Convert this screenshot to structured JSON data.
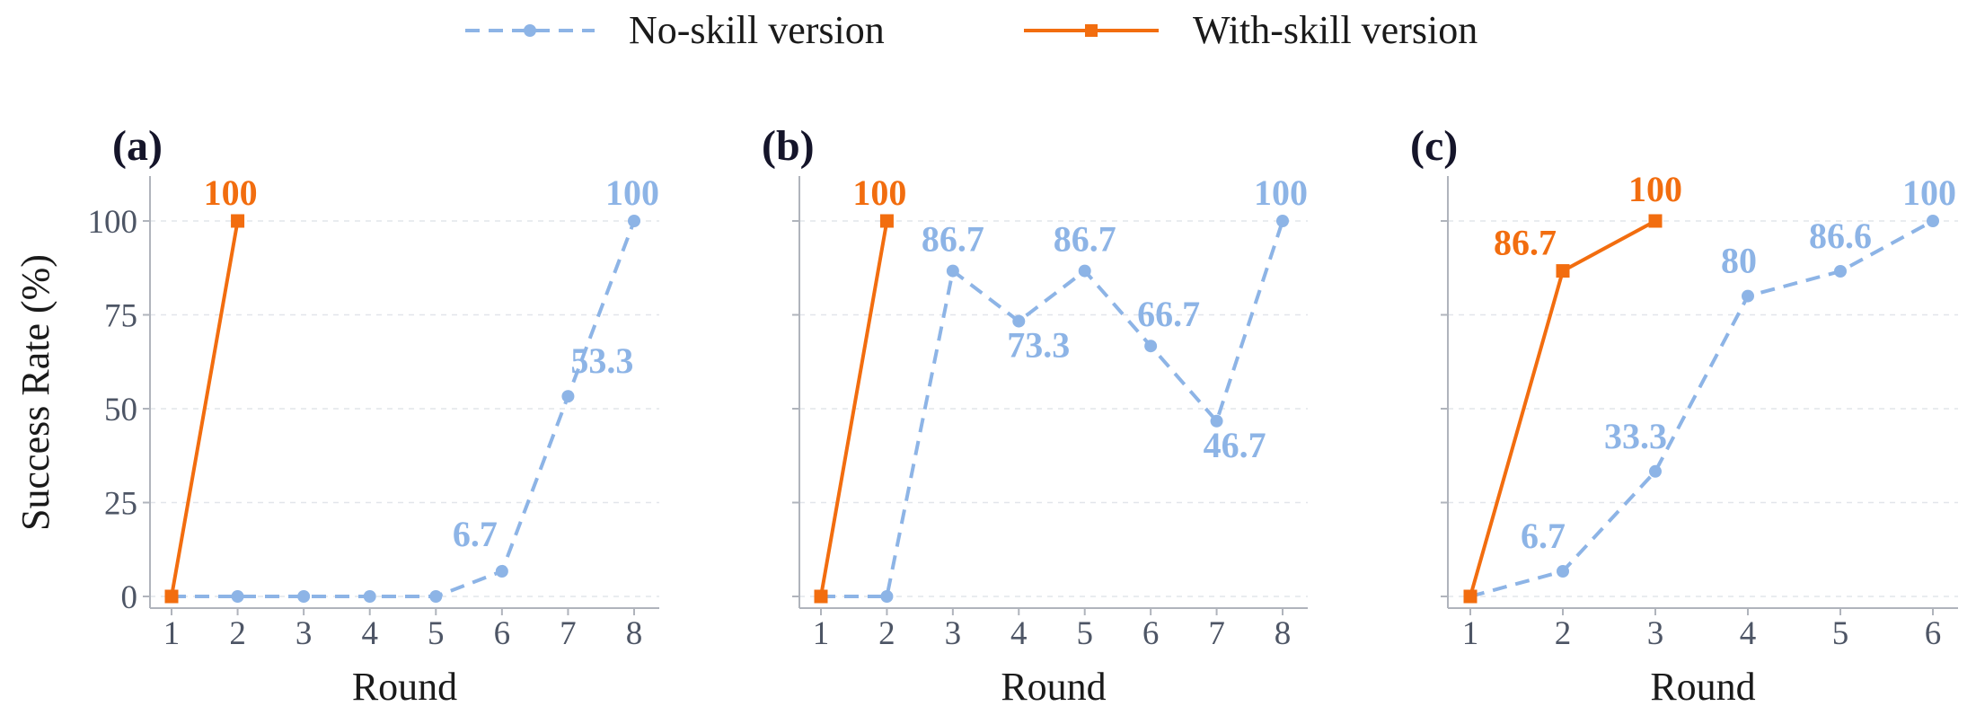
{
  "colors": {
    "no_skill": "#8db4e6",
    "with_skill": "#f26d0f",
    "axis": "#b0b4bc",
    "grid": "#e2e5ea"
  },
  "legend": {
    "entries": [
      {
        "name": "No-skill version",
        "color": "#8db4e6",
        "marker": "circle",
        "line": "dashed"
      },
      {
        "name": "With-skill version",
        "color": "#f26d0f",
        "marker": "square",
        "line": "solid"
      }
    ],
    "position": "top-center"
  },
  "chart_data": [
    {
      "type": "line",
      "panel_label": "(a)",
      "xlabel": "Round",
      "ylabel": "Success Rate (%)",
      "ylim": [
        -3,
        112
      ],
      "yticks": [
        0,
        25,
        50,
        75,
        100
      ],
      "x": [
        1,
        2,
        3,
        4,
        5,
        6,
        7,
        8
      ],
      "grid": "horizontal-dashed",
      "series": [
        {
          "name": "No-skill version",
          "x": [
            1,
            2,
            3,
            4,
            5,
            6,
            7,
            8
          ],
          "values": [
            0,
            0,
            0,
            0,
            0,
            6.7,
            53.3,
            100
          ],
          "labels": [
            {
              "i": 5,
              "text": "6.7"
            },
            {
              "i": 6,
              "text": "53.3"
            },
            {
              "i": 7,
              "text": "100"
            }
          ]
        },
        {
          "name": "With-skill version",
          "x": [
            1,
            2
          ],
          "values": [
            0,
            100
          ],
          "labels": [
            {
              "i": 1,
              "text": "100"
            }
          ]
        }
      ]
    },
    {
      "type": "line",
      "panel_label": "(b)",
      "xlabel": "Round",
      "ylabel": "",
      "ylim": [
        -3,
        112
      ],
      "yticks": [
        0,
        25,
        50,
        75,
        100
      ],
      "x": [
        1,
        2,
        3,
        4,
        5,
        6,
        7,
        8
      ],
      "grid": "horizontal-dashed",
      "series": [
        {
          "name": "No-skill version",
          "x": [
            1,
            2,
            3,
            4,
            5,
            6,
            7,
            8
          ],
          "values": [
            0,
            0,
            86.7,
            73.3,
            86.7,
            66.7,
            46.7,
            100
          ],
          "labels": [
            {
              "i": 2,
              "text": "86.7"
            },
            {
              "i": 3,
              "text": "73.3"
            },
            {
              "i": 4,
              "text": "86.7"
            },
            {
              "i": 5,
              "text": "66.7"
            },
            {
              "i": 6,
              "text": "46.7"
            },
            {
              "i": 7,
              "text": "100"
            }
          ]
        },
        {
          "name": "With-skill version",
          "x": [
            1,
            2
          ],
          "values": [
            0,
            100
          ],
          "labels": [
            {
              "i": 1,
              "text": "100"
            }
          ]
        }
      ]
    },
    {
      "type": "line",
      "panel_label": "(c)",
      "xlabel": "Round",
      "ylabel": "",
      "ylim": [
        -3,
        112
      ],
      "yticks": [
        0,
        25,
        50,
        75,
        100
      ],
      "x": [
        1,
        2,
        3,
        4,
        5,
        6
      ],
      "grid": "horizontal-dashed",
      "series": [
        {
          "name": "No-skill version",
          "x": [
            1,
            2,
            3,
            4,
            5,
            6
          ],
          "values": [
            0,
            6.7,
            33.3,
            80,
            86.6,
            100
          ],
          "labels": [
            {
              "i": 1,
              "text": "6.7"
            },
            {
              "i": 2,
              "text": "33.3"
            },
            {
              "i": 3,
              "text": "80"
            },
            {
              "i": 4,
              "text": "86.6"
            },
            {
              "i": 5,
              "text": "100"
            }
          ]
        },
        {
          "name": "With-skill version",
          "x": [
            1,
            2,
            3
          ],
          "values": [
            0,
            86.7,
            100
          ],
          "labels": [
            {
              "i": 1,
              "text": "86.7"
            },
            {
              "i": 2,
              "text": "100"
            }
          ]
        }
      ]
    }
  ]
}
